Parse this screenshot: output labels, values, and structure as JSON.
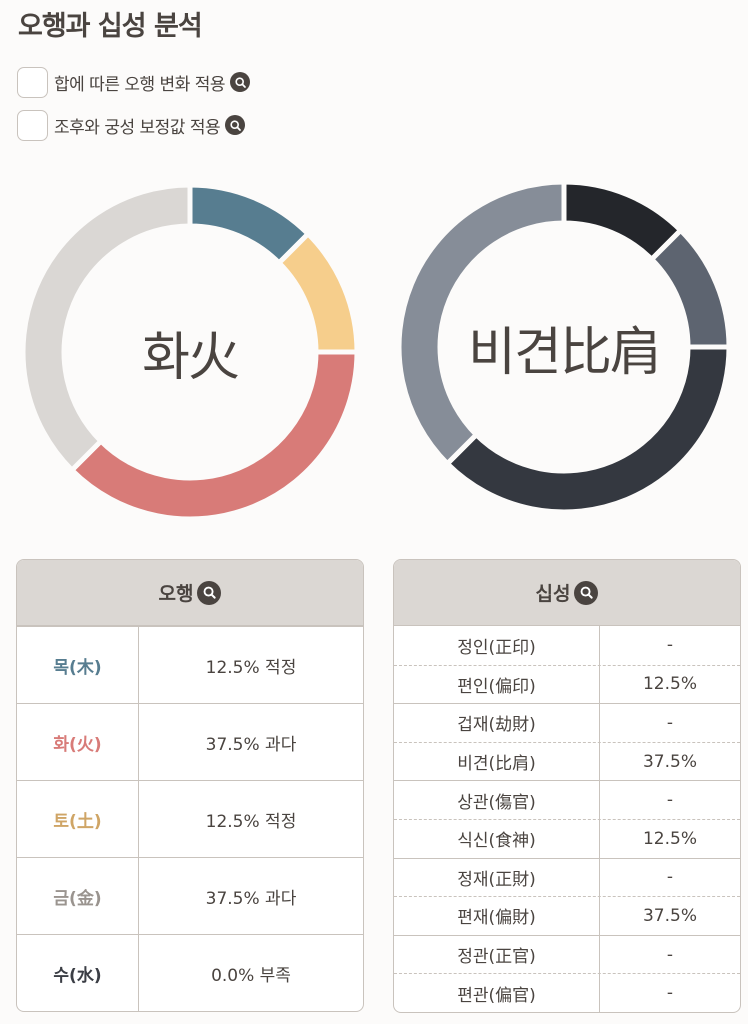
{
  "title": "오행과 십성 분석",
  "options": [
    {
      "label": "합에 따른 오행 변화 적용",
      "checked": false,
      "icon": "search-icon"
    },
    {
      "label": "조후와 궁성 보정값 적용",
      "checked": false,
      "icon": "search-icon"
    }
  ],
  "chart_data": [
    {
      "type": "pie",
      "variant": "donut",
      "title": "오행",
      "center_label": "화火",
      "categories": [
        "목(木)",
        "토(土)",
        "화(火)",
        "금(金)",
        "수(水)"
      ],
      "values": [
        12.5,
        12.5,
        37.5,
        37.5,
        0.0
      ],
      "colors": [
        "#577d90",
        "#f6ce8c",
        "#d87b78",
        "#dad7d4",
        "#3b3e45"
      ],
      "start_angle_deg": 0,
      "direction": "clockwise"
    },
    {
      "type": "pie",
      "variant": "donut",
      "title": "십성",
      "center_label": "비견比肩",
      "categories": [
        "편인(偏印)",
        "식신(食神)",
        "비견(比肩)",
        "편재(偏財)"
      ],
      "values": [
        12.5,
        12.5,
        37.5,
        37.5
      ],
      "colors": [
        "#24262b",
        "#5d6470",
        "#343840",
        "#868d98"
      ],
      "start_angle_deg": 0,
      "direction": "clockwise"
    }
  ],
  "ohaeng_table": {
    "header": "오행",
    "rows": [
      {
        "element": "목(木)",
        "value": "12.5% 적정",
        "color": "#577d90"
      },
      {
        "element": "화(火)",
        "value": "37.5% 과다",
        "color": "#d87b78"
      },
      {
        "element": "토(土)",
        "value": "12.5% 적정",
        "color": "#cfa566"
      },
      {
        "element": "금(金)",
        "value": "37.5% 과다",
        "color": "#9a948f"
      },
      {
        "element": "수(水)",
        "value": "0.0% 부족",
        "color": "#3b3e45"
      }
    ]
  },
  "sipsung_table": {
    "header": "십성",
    "rows": [
      {
        "name": "정인(正印)",
        "value": "-"
      },
      {
        "name": "편인(偏印)",
        "value": "12.5%"
      },
      {
        "name": "겁재(劫財)",
        "value": "-"
      },
      {
        "name": "비견(比肩)",
        "value": "37.5%"
      },
      {
        "name": "상관(傷官)",
        "value": "-"
      },
      {
        "name": "식신(食神)",
        "value": "12.5%"
      },
      {
        "name": "정재(正財)",
        "value": "-"
      },
      {
        "name": "편재(偏財)",
        "value": "37.5%"
      },
      {
        "name": "정관(正官)",
        "value": "-"
      },
      {
        "name": "편관(偏官)",
        "value": "-"
      }
    ]
  }
}
